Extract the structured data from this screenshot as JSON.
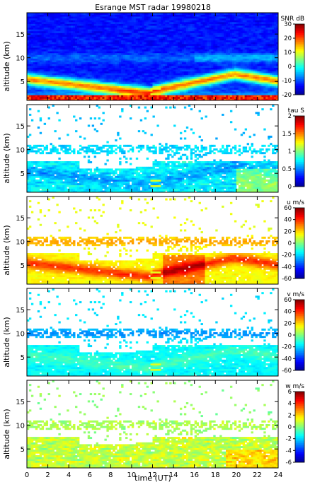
{
  "title": "Esrange MST radar 19980218",
  "xlabel": "time (UT)",
  "x_ticks": [
    "0",
    "2",
    "4",
    "6",
    "8",
    "10",
    "12",
    "14",
    "16",
    "18",
    "20",
    "22",
    "24"
  ],
  "ylabel": "altitude (km)",
  "colormap": [
    "#00008f",
    "#0000ff",
    "#0080ff",
    "#00ffff",
    "#80ff80",
    "#ffff00",
    "#ff8000",
    "#ff0000",
    "#800000"
  ],
  "chart_data": [
    {
      "type": "heatmap",
      "quantity": "SNR",
      "colorbar_label": "SNR dB",
      "clim": [
        -20,
        30
      ],
      "cbar_ticks": [
        "30",
        "20",
        "10",
        "0",
        "-10",
        "-20"
      ],
      "xlim": [
        0,
        24
      ],
      "ylim": [
        1,
        19.5
      ],
      "y_ticks": [
        "15",
        "10",
        "5"
      ],
      "grid": false
    },
    {
      "type": "heatmap",
      "quantity": "tau",
      "colorbar_label": "tau S",
      "clim": [
        0,
        2
      ],
      "cbar_ticks": [
        "2",
        "1.5",
        "1",
        "0.5",
        "0"
      ],
      "xlim": [
        0,
        24
      ],
      "ylim": [
        1,
        19.5
      ],
      "y_ticks": [
        "15",
        "10",
        "5"
      ],
      "grid": false
    },
    {
      "type": "heatmap",
      "quantity": "u",
      "colorbar_label": "u m/s",
      "clim": [
        -60,
        60
      ],
      "cbar_ticks": [
        "60",
        "40",
        "20",
        "0",
        "-20",
        "-40",
        "-60"
      ],
      "xlim": [
        0,
        24
      ],
      "ylim": [
        1,
        19.5
      ],
      "y_ticks": [
        "15",
        "10",
        "5"
      ],
      "grid": false
    },
    {
      "type": "heatmap",
      "quantity": "v",
      "colorbar_label": "v m/s",
      "clim": [
        -60,
        60
      ],
      "cbar_ticks": [
        "60",
        "40",
        "20",
        "0",
        "-20",
        "-40",
        "-60"
      ],
      "xlim": [
        0,
        24
      ],
      "ylim": [
        1,
        19.5
      ],
      "y_ticks": [
        "15",
        "10",
        "5"
      ],
      "grid": false
    },
    {
      "type": "heatmap",
      "quantity": "w",
      "colorbar_label": "w m/s",
      "clim": [
        -6,
        6
      ],
      "cbar_ticks": [
        "6",
        "4",
        "2",
        "0",
        "-2",
        "-4",
        "-6"
      ],
      "xlim": [
        0,
        24
      ],
      "ylim": [
        1,
        19.5
      ],
      "y_ticks": [
        "15",
        "10",
        "5"
      ],
      "grid": false
    }
  ]
}
